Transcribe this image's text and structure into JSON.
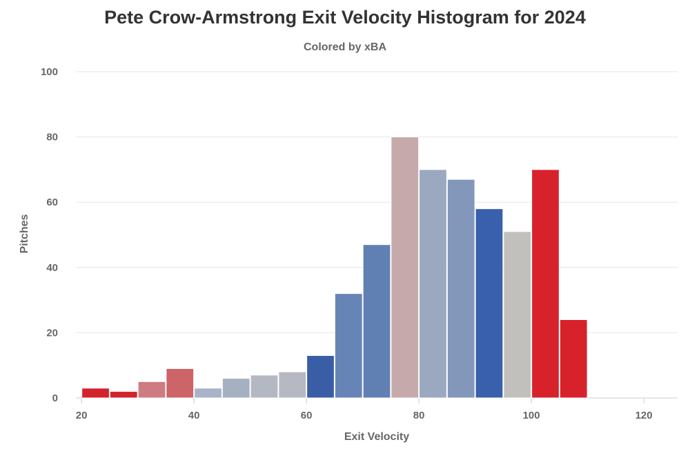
{
  "chart_data": {
    "type": "bar",
    "title": "Pete Crow-Armstrong Exit Velocity Histogram for 2024",
    "subtitle": "Colored by xBA",
    "xlabel": "Exit Velocity",
    "ylabel": "Pitches",
    "xlim": [
      19,
      126
    ],
    "ylim": [
      0,
      100
    ],
    "bin_width": 5,
    "x_ticks": [
      20,
      40,
      60,
      80,
      100,
      120
    ],
    "y_ticks": [
      0,
      20,
      40,
      60,
      80,
      100
    ],
    "bins": [
      {
        "start": 20,
        "value": 3,
        "color": "#d3232c"
      },
      {
        "start": 25,
        "value": 2,
        "color": "#d3232c"
      },
      {
        "start": 30,
        "value": 5,
        "color": "#cf7b82"
      },
      {
        "start": 35,
        "value": 9,
        "color": "#cd6468"
      },
      {
        "start": 40,
        "value": 3,
        "color": "#a8b3c8"
      },
      {
        "start": 45,
        "value": 6,
        "color": "#a6b0c3"
      },
      {
        "start": 50,
        "value": 7,
        "color": "#b3b8c2"
      },
      {
        "start": 55,
        "value": 8,
        "color": "#b6b9c1"
      },
      {
        "start": 60,
        "value": 13,
        "color": "#3a5ea6"
      },
      {
        "start": 65,
        "value": 32,
        "color": "#6684b6"
      },
      {
        "start": 70,
        "value": 47,
        "color": "#6080b4"
      },
      {
        "start": 75,
        "value": 80,
        "color": "#c6aaab"
      },
      {
        "start": 80,
        "value": 70,
        "color": "#9aa8c0"
      },
      {
        "start": 85,
        "value": 67,
        "color": "#8397bb"
      },
      {
        "start": 90,
        "value": 58,
        "color": "#3860ac"
      },
      {
        "start": 95,
        "value": 51,
        "color": "#c2c0bd"
      },
      {
        "start": 100,
        "value": 70,
        "color": "#d8222b"
      },
      {
        "start": 105,
        "value": 24,
        "color": "#d8222b"
      },
      {
        "start": 110,
        "value": 0,
        "color": "#d8222b"
      },
      {
        "start": 115,
        "value": 0,
        "color": "#d8222b"
      },
      {
        "start": 120,
        "value": 0,
        "color": "#d8222b"
      }
    ],
    "grid": true,
    "legend": "none"
  }
}
